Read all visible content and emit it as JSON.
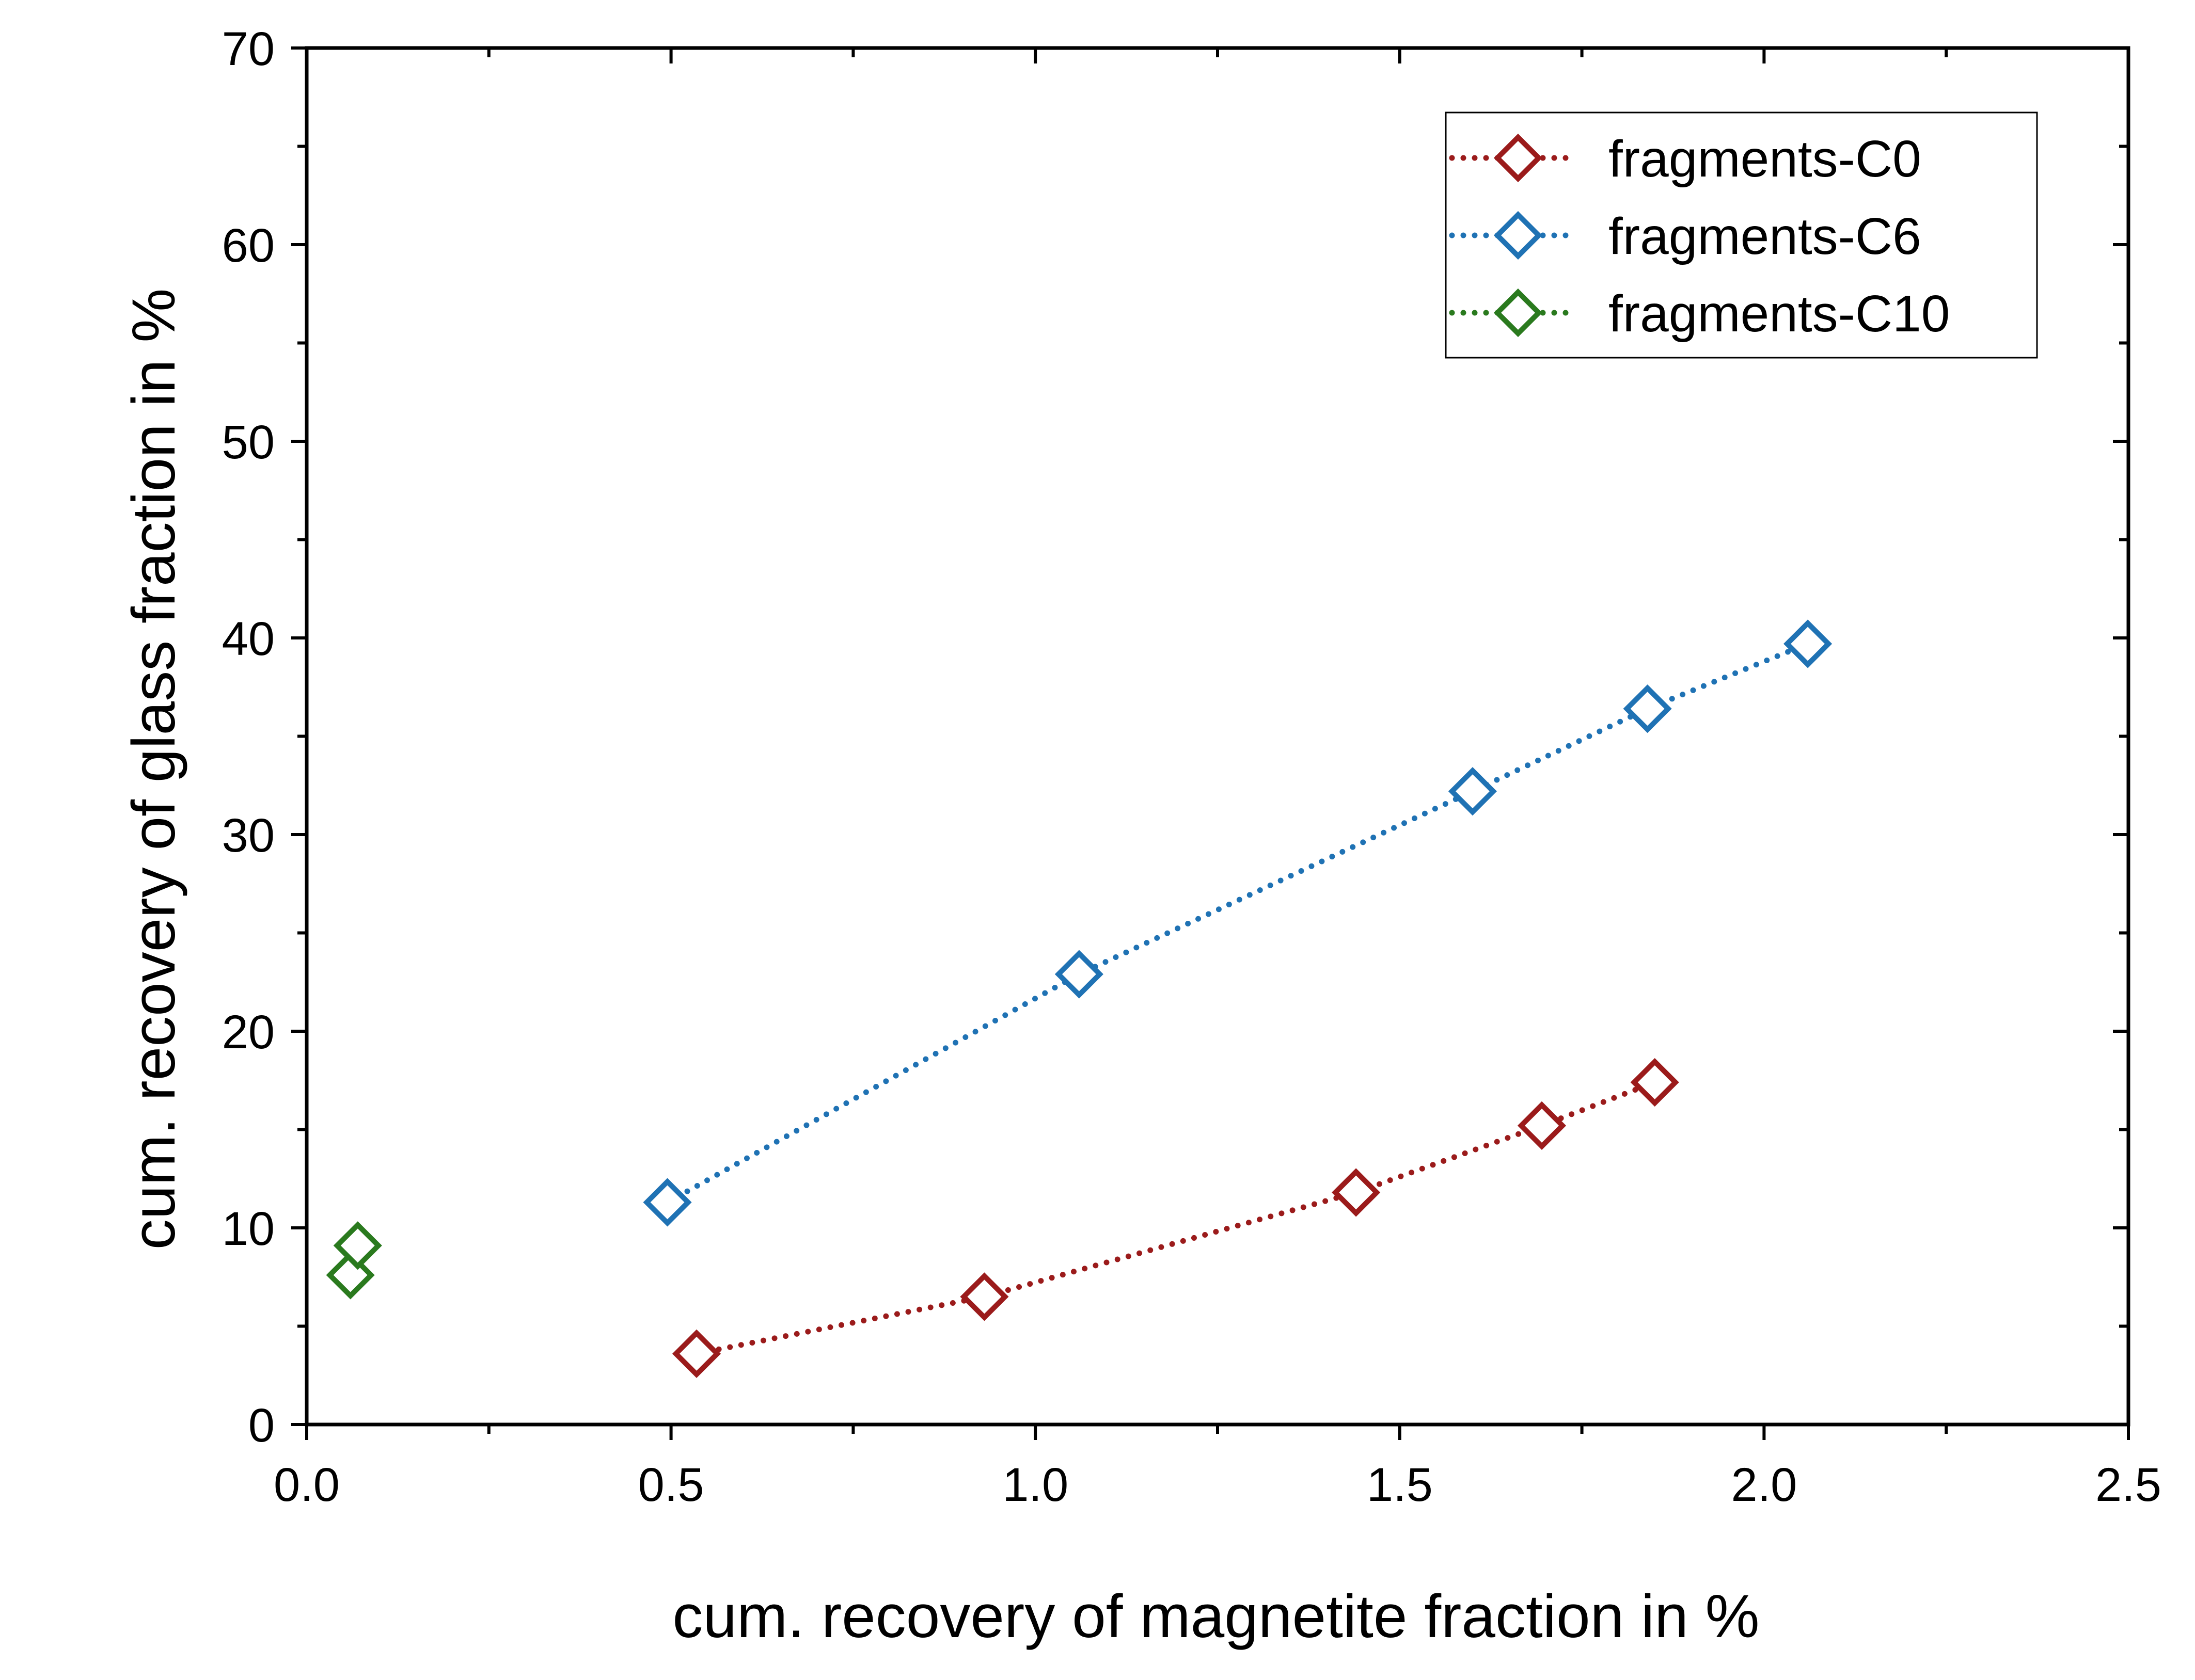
{
  "chart_data": {
    "type": "scatter",
    "title": "",
    "xlabel": "cum. recovery of magnetite fraction in %",
    "ylabel": "cum. recovery of glass fraction in %",
    "xlim": [
      0.0,
      2.5
    ],
    "ylim": [
      0,
      70
    ],
    "x_ticks": [
      "0.0",
      "0.5",
      "1.0",
      "1.5",
      "2.0",
      "2.5"
    ],
    "y_ticks": [
      "0",
      "10",
      "20",
      "30",
      "40",
      "50",
      "60",
      "70"
    ],
    "grid": false,
    "legend_position": "top-right",
    "series": [
      {
        "name": "fragments-C0",
        "color": "#9b1b1b",
        "marker": "diamond-open",
        "line": "dotted",
        "x": [
          0.535,
          0.93,
          1.44,
          1.695,
          1.85
        ],
        "y": [
          3.6,
          6.5,
          11.8,
          15.2,
          17.4
        ]
      },
      {
        "name": "fragments-C6",
        "color": "#1f72b4",
        "marker": "diamond-open",
        "line": "dotted",
        "x": [
          0.495,
          1.06,
          1.6,
          1.84,
          2.06
        ],
        "y": [
          11.3,
          22.9,
          32.2,
          36.4,
          39.7
        ]
      },
      {
        "name": "fragments-C10",
        "color": "#2a7a1e",
        "marker": "diamond-open",
        "line": "dotted",
        "x": [
          0.06,
          0.07
        ],
        "y": [
          7.6,
          9.1
        ]
      }
    ]
  }
}
